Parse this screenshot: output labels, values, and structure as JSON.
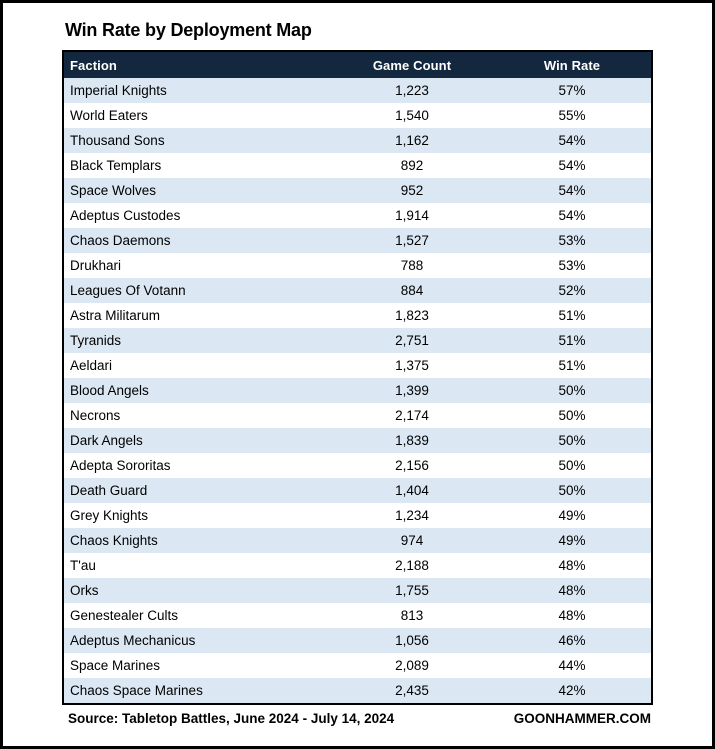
{
  "title": "Win Rate by Deployment Map",
  "chart_data": {
    "type": "table",
    "title": "Win Rate by Deployment Map",
    "columns": [
      "Faction",
      "Game Count",
      "Win Rate"
    ],
    "rows": [
      {
        "faction": "Imperial Knights",
        "game_count": "1,223",
        "win_rate": "57%"
      },
      {
        "faction": "World Eaters",
        "game_count": "1,540",
        "win_rate": "55%"
      },
      {
        "faction": "Thousand Sons",
        "game_count": "1,162",
        "win_rate": "54%"
      },
      {
        "faction": "Black Templars",
        "game_count": "892",
        "win_rate": "54%"
      },
      {
        "faction": "Space Wolves",
        "game_count": "952",
        "win_rate": "54%"
      },
      {
        "faction": "Adeptus Custodes",
        "game_count": "1,914",
        "win_rate": "54%"
      },
      {
        "faction": "Chaos Daemons",
        "game_count": "1,527",
        "win_rate": "53%"
      },
      {
        "faction": "Drukhari",
        "game_count": "788",
        "win_rate": "53%"
      },
      {
        "faction": "Leagues Of Votann",
        "game_count": "884",
        "win_rate": "52%"
      },
      {
        "faction": "Astra Militarum",
        "game_count": "1,823",
        "win_rate": "51%"
      },
      {
        "faction": "Tyranids",
        "game_count": "2,751",
        "win_rate": "51%"
      },
      {
        "faction": "Aeldari",
        "game_count": "1,375",
        "win_rate": "51%"
      },
      {
        "faction": "Blood Angels",
        "game_count": "1,399",
        "win_rate": "50%"
      },
      {
        "faction": "Necrons",
        "game_count": "2,174",
        "win_rate": "50%"
      },
      {
        "faction": "Dark Angels",
        "game_count": "1,839",
        "win_rate": "50%"
      },
      {
        "faction": "Adepta Sororitas",
        "game_count": "2,156",
        "win_rate": "50%"
      },
      {
        "faction": "Death Guard",
        "game_count": "1,404",
        "win_rate": "50%"
      },
      {
        "faction": "Grey Knights",
        "game_count": "1,234",
        "win_rate": "49%"
      },
      {
        "faction": "Chaos Knights",
        "game_count": "974",
        "win_rate": "49%"
      },
      {
        "faction": "T'au",
        "game_count": "2,188",
        "win_rate": "48%"
      },
      {
        "faction": "Orks",
        "game_count": "1,755",
        "win_rate": "48%"
      },
      {
        "faction": "Genestealer Cults",
        "game_count": "813",
        "win_rate": "48%"
      },
      {
        "faction": "Adeptus Mechanicus",
        "game_count": "1,056",
        "win_rate": "46%"
      },
      {
        "faction": "Space Marines",
        "game_count": "2,089",
        "win_rate": "44%"
      },
      {
        "faction": "Chaos Space Marines",
        "game_count": "2,435",
        "win_rate": "42%"
      }
    ]
  },
  "footer": {
    "source": "Source: Tabletop Battles, June 2024 - July 14, 2024",
    "site": "GOONHAMMER.COM"
  },
  "colors": {
    "header_bg": "#13283e",
    "row_alt": "#dbe8f4",
    "frame_border": "#000000",
    "header_text": "#ffffff",
    "body_text": "#000000"
  }
}
